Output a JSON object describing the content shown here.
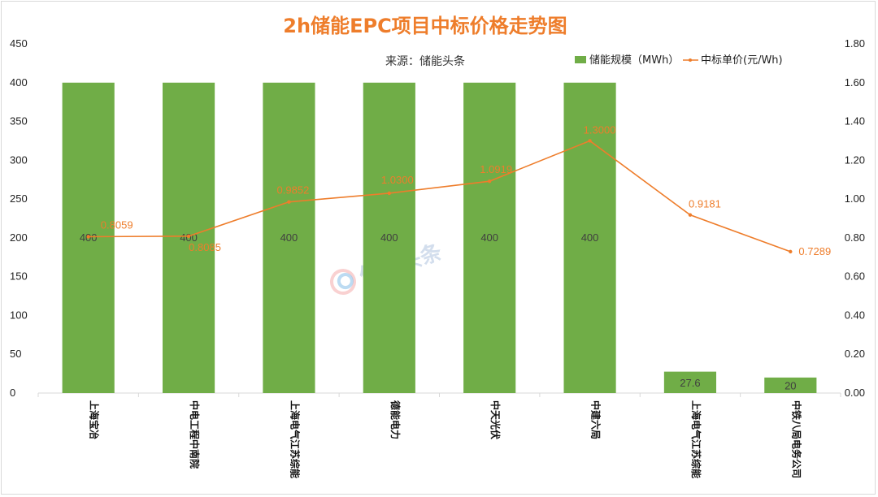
{
  "chart_data": {
    "type": "bar",
    "title": "2h储能EPC项目中标价格走势图",
    "subtitle": "来源：储能头条",
    "categories": [
      "上海宝冶",
      "中电工程中南院",
      "上海电气江苏综能",
      "德能电力",
      "中天光伏",
      "中建六局",
      "上海电气江苏综能",
      "中铁八局电务公司"
    ],
    "series": [
      {
        "name": "储能规模（MWh）",
        "type": "bar",
        "axis": "left",
        "color": "#70ad47",
        "values": [
          400,
          400,
          400,
          400,
          400,
          400,
          27.6,
          20
        ],
        "labels": [
          "400",
          "400",
          "400",
          "400",
          "400",
          "400",
          "27.6",
          "20"
        ]
      },
      {
        "name": "中标单价(元/Wh)",
        "type": "line",
        "axis": "right",
        "color": "#ee7d2b",
        "values": [
          0.8059,
          0.8085,
          0.9852,
          1.03,
          1.0919,
          1.3,
          0.9181,
          0.7289
        ],
        "labels": [
          "0.8059",
          "0.8085",
          "0.9852",
          "1.0300",
          "1.0919",
          "1.3000",
          "0.9181",
          "0.7289"
        ]
      }
    ],
    "y_left": {
      "ylim": [
        0,
        450
      ],
      "ticks": [
        "0",
        "50",
        "100",
        "150",
        "200",
        "250",
        "300",
        "350",
        "400",
        "450"
      ]
    },
    "y_right": {
      "ylim": [
        0,
        1.8
      ],
      "ticks": [
        "0.00",
        "0.20",
        "0.40",
        "0.60",
        "0.80",
        "1.00",
        "1.20",
        "1.40",
        "1.60",
        "1.80"
      ]
    },
    "grid": false,
    "legend": "top-right",
    "watermark": "储能头条"
  }
}
